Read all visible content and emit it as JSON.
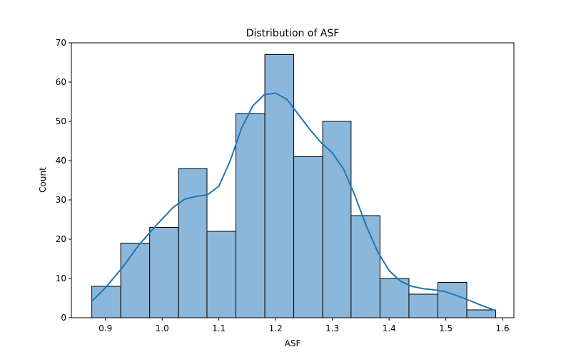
{
  "chart_data": {
    "type": "bar",
    "title": "Distribution of ASF",
    "xlabel": "ASF",
    "ylabel": "Count",
    "xlim": [
      0.84,
      1.62
    ],
    "ylim": [
      0,
      70
    ],
    "xticks": [
      0.9,
      1.0,
      1.1,
      1.2,
      1.3,
      1.4,
      1.5,
      1.6
    ],
    "xtick_labels": [
      "0.9",
      "1.0",
      "1.1",
      "1.2",
      "1.3",
      "1.4",
      "1.5",
      "1.6"
    ],
    "yticks": [
      0,
      10,
      20,
      30,
      40,
      50,
      60,
      70
    ],
    "ytick_labels": [
      "0",
      "10",
      "20",
      "30",
      "40",
      "50",
      "60",
      "70"
    ],
    "bins": [
      {
        "x0": 0.876,
        "x1": 0.927,
        "count": 8
      },
      {
        "x0": 0.927,
        "x1": 0.978,
        "count": 19
      },
      {
        "x0": 0.978,
        "x1": 1.029,
        "count": 23
      },
      {
        "x0": 1.029,
        "x1": 1.079,
        "count": 38
      },
      {
        "x0": 1.079,
        "x1": 1.13,
        "count": 22
      },
      {
        "x0": 1.13,
        "x1": 1.181,
        "count": 52
      },
      {
        "x0": 1.181,
        "x1": 1.232,
        "count": 67
      },
      {
        "x0": 1.232,
        "x1": 1.283,
        "count": 41
      },
      {
        "x0": 1.283,
        "x1": 1.333,
        "count": 50
      },
      {
        "x0": 1.333,
        "x1": 1.384,
        "count": 26
      },
      {
        "x0": 1.384,
        "x1": 1.435,
        "count": 10
      },
      {
        "x0": 1.435,
        "x1": 1.486,
        "count": 6
      },
      {
        "x0": 1.486,
        "x1": 1.537,
        "count": 9
      },
      {
        "x0": 1.537,
        "x1": 1.588,
        "count": 2
      }
    ],
    "kde": {
      "x": [
        0.876,
        0.9,
        0.93,
        0.96,
        0.99,
        1.02,
        1.04,
        1.06,
        1.08,
        1.1,
        1.12,
        1.14,
        1.16,
        1.18,
        1.2,
        1.22,
        1.24,
        1.26,
        1.28,
        1.3,
        1.32,
        1.34,
        1.36,
        1.38,
        1.4,
        1.42,
        1.44,
        1.46,
        1.48,
        1.5,
        1.52,
        1.54,
        1.56,
        1.588
      ],
      "y": [
        4.2,
        7.6,
        12.8,
        18.7,
        23.6,
        28.2,
        30.2,
        30.9,
        31.3,
        33.5,
        40.0,
        48.3,
        54.0,
        56.8,
        57.2,
        55.6,
        51.8,
        48.0,
        44.6,
        42.0,
        37.8,
        31.0,
        23.3,
        16.8,
        12.0,
        9.3,
        8.0,
        7.4,
        7.1,
        6.6,
        5.6,
        4.5,
        3.3,
        1.8
      ]
    },
    "colors": {
      "bar_fill": "#8bb7db",
      "bar_edge": "#000000",
      "kde_line": "#1f77b4"
    },
    "grid": false
  }
}
